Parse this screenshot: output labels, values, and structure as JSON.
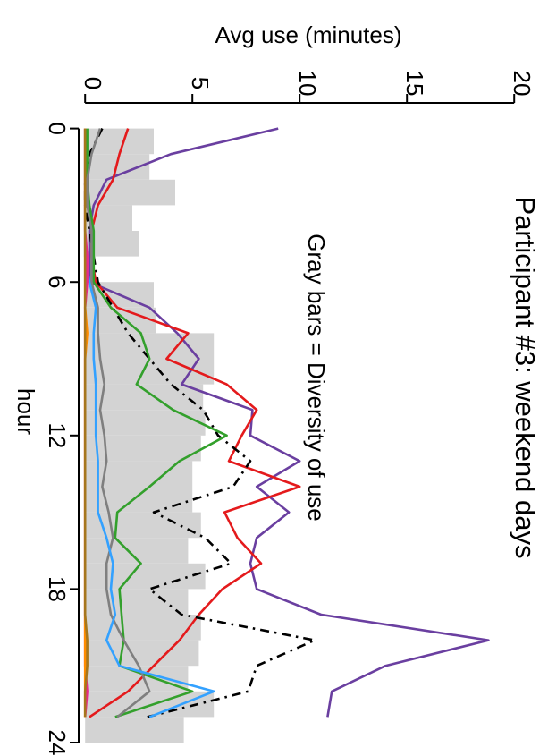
{
  "chart_data": {
    "type": "line",
    "title": "Participant #3: weekend days",
    "annotation": "Gray bars = Diversity of use",
    "xlabel": "hour",
    "ylabel": "Avg use (minutes)",
    "xlim": [
      -1,
      24
    ],
    "ylim": [
      -0.3,
      20.7
    ],
    "xticks": [
      0,
      6,
      12,
      18,
      24
    ],
    "yticks": [
      0,
      5,
      10,
      15,
      20
    ],
    "orientation": "rotated 90 degrees clockwise (hour runs top to bottom, minutes left to right)",
    "grid": false,
    "background_bars": {
      "name": "Diversity of use",
      "color": "#d3d3d3",
      "x": [
        0,
        1,
        2,
        3,
        4,
        5,
        6,
        7,
        8,
        9,
        10,
        11,
        12,
        13,
        14,
        15,
        16,
        17,
        18,
        19,
        20,
        21,
        22,
        23
      ],
      "values": [
        3.2,
        3.0,
        4.2,
        2.2,
        2.5,
        0.0,
        3.2,
        3.3,
        6.0,
        6.0,
        5.5,
        5.6,
        5.4,
        5.0,
        5.0,
        5.4,
        4.8,
        5.6,
        4.8,
        5.4,
        5.3,
        4.8,
        6.0,
        4.6
      ]
    },
    "series": [
      {
        "color": "#6a3fa0",
        "style": "solid",
        "x": [
          0,
          1,
          2,
          3,
          4,
          5,
          6,
          7,
          8,
          9,
          10,
          11,
          12,
          13,
          14,
          15,
          16,
          17,
          18,
          19,
          20,
          21,
          22,
          23
        ],
        "y": [
          9.0,
          4.0,
          1.0,
          0.4,
          0.2,
          0.2,
          0.2,
          3.0,
          4.3,
          5.3,
          4.5,
          7.8,
          7.7,
          10.0,
          8.0,
          9.5,
          8.0,
          7.7,
          8.0,
          11.0,
          18.8,
          14.0,
          11.5,
          11.3
        ]
      },
      {
        "color": "#e41a1c",
        "style": "solid",
        "x": [
          0,
          1,
          2,
          3,
          4,
          5,
          6,
          7,
          8,
          9,
          10,
          11,
          12,
          13,
          14,
          15,
          16,
          17,
          18,
          19,
          20,
          21,
          22,
          23
        ],
        "y": [
          2.0,
          1.6,
          1.3,
          0.6,
          0.3,
          0.3,
          0.5,
          1.5,
          4.8,
          3.8,
          6.6,
          8.0,
          7.3,
          6.7,
          10.0,
          6.5,
          7.1,
          8.2,
          6.4,
          5.3,
          4.4,
          3.2,
          2.0,
          0.2
        ]
      },
      {
        "color": "#000000",
        "style": "dashdot",
        "x": [
          0,
          1,
          2,
          3,
          4,
          5,
          6,
          7,
          8,
          9,
          10,
          11,
          12,
          13,
          14,
          15,
          16,
          17,
          18,
          19,
          20,
          21,
          22,
          23
        ],
        "y": [
          0.8,
          0.2,
          0.0,
          0.0,
          0.2,
          0.4,
          0.6,
          1.3,
          2.0,
          3.0,
          4.0,
          5.5,
          6.2,
          7.7,
          6.9,
          3.2,
          5.6,
          6.8,
          3.0,
          4.5,
          10.7,
          8.0,
          7.6,
          2.9
        ]
      },
      {
        "color": "#33a02c",
        "style": "solid",
        "x": [
          0,
          1,
          2,
          3,
          4,
          5,
          6,
          7,
          8,
          9,
          10,
          11,
          12,
          13,
          14,
          15,
          16,
          17,
          18,
          19,
          20,
          21,
          22,
          23
        ],
        "y": [
          0.1,
          0.1,
          0.1,
          0.2,
          0.4,
          0.4,
          0.4,
          1.2,
          2.6,
          3.0,
          2.4,
          4.1,
          6.6,
          4.4,
          3.0,
          1.5,
          1.4,
          2.6,
          1.6,
          1.7,
          1.8,
          1.6,
          5.0,
          1.4
        ]
      },
      {
        "color": "#7f7f7f",
        "style": "solid",
        "x": [
          0,
          1,
          2,
          3,
          4,
          5,
          6,
          7,
          8,
          9,
          10,
          11,
          12,
          13,
          14,
          15,
          16,
          17,
          18,
          19,
          20,
          21,
          22,
          23
        ],
        "y": [
          0.7,
          0.3,
          0.1,
          0.1,
          0.3,
          0.3,
          0.3,
          0.6,
          0.6,
          0.7,
          0.9,
          0.7,
          0.9,
          1.0,
          0.8,
          1.1,
          1.3,
          1.0,
          1.0,
          1.2,
          1.8,
          2.5,
          3.0,
          1.5
        ]
      },
      {
        "color": "#33a1ff",
        "style": "solid",
        "x": [
          0,
          1,
          2,
          3,
          4,
          5,
          6,
          7,
          8,
          9,
          10,
          11,
          12,
          13,
          14,
          15,
          16,
          17,
          18,
          19,
          20,
          21,
          22,
          23
        ],
        "y": [
          0.0,
          0.0,
          0.0,
          0.0,
          0.0,
          0.0,
          0.2,
          0.5,
          0.4,
          0.4,
          0.5,
          0.5,
          0.5,
          0.6,
          0.6,
          0.6,
          1.0,
          1.3,
          1.2,
          1.4,
          1.0,
          1.6,
          6.0,
          3.0
        ]
      },
      {
        "color": "#e7298a",
        "style": "solid",
        "x": [
          0,
          1,
          2,
          3,
          4,
          5,
          6,
          7,
          8,
          9,
          10,
          11,
          12,
          13,
          14,
          15,
          16,
          17,
          18,
          19,
          20,
          21,
          22,
          23
        ],
        "y": [
          0.0,
          0.0,
          0.0,
          0.0,
          0.0,
          0.1,
          0.1,
          0.0,
          0.0,
          0.0,
          0.0,
          0.0,
          0.0,
          0.0,
          0.0,
          0.0,
          0.0,
          0.0,
          0.0,
          0.0,
          0.0,
          0.0,
          0.1,
          0.0
        ]
      },
      {
        "color": "#ff8c00",
        "style": "solid",
        "x": [
          0,
          1,
          2,
          3,
          4,
          5,
          6,
          7,
          8,
          9,
          10,
          11,
          12,
          13,
          14,
          15,
          16,
          17,
          18,
          19,
          20,
          21,
          22,
          23
        ],
        "y": [
          0.0,
          0.0,
          0.0,
          0.0,
          0.0,
          0.0,
          0.0,
          0.0,
          0.1,
          0.0,
          0.0,
          0.0,
          0.0,
          0.0,
          0.0,
          0.0,
          0.0,
          0.0,
          0.0,
          0.0,
          0.0,
          0.0,
          0.0,
          0.0
        ]
      },
      {
        "color": "#a6761d",
        "style": "solid",
        "x": [
          0,
          1,
          2,
          3,
          4,
          5,
          6,
          7,
          8,
          9,
          10,
          11,
          12,
          13,
          14,
          15,
          16,
          17,
          18,
          19,
          20,
          21,
          22,
          23
        ],
        "y": [
          0.0,
          0.0,
          0.0,
          0.0,
          0.0,
          0.0,
          0.0,
          0.0,
          0.0,
          0.0,
          0.0,
          0.0,
          0.0,
          0.0,
          0.0,
          0.0,
          0.0,
          0.0,
          0.0,
          0.0,
          0.1,
          0.1,
          0.0,
          0.0
        ]
      }
    ]
  }
}
